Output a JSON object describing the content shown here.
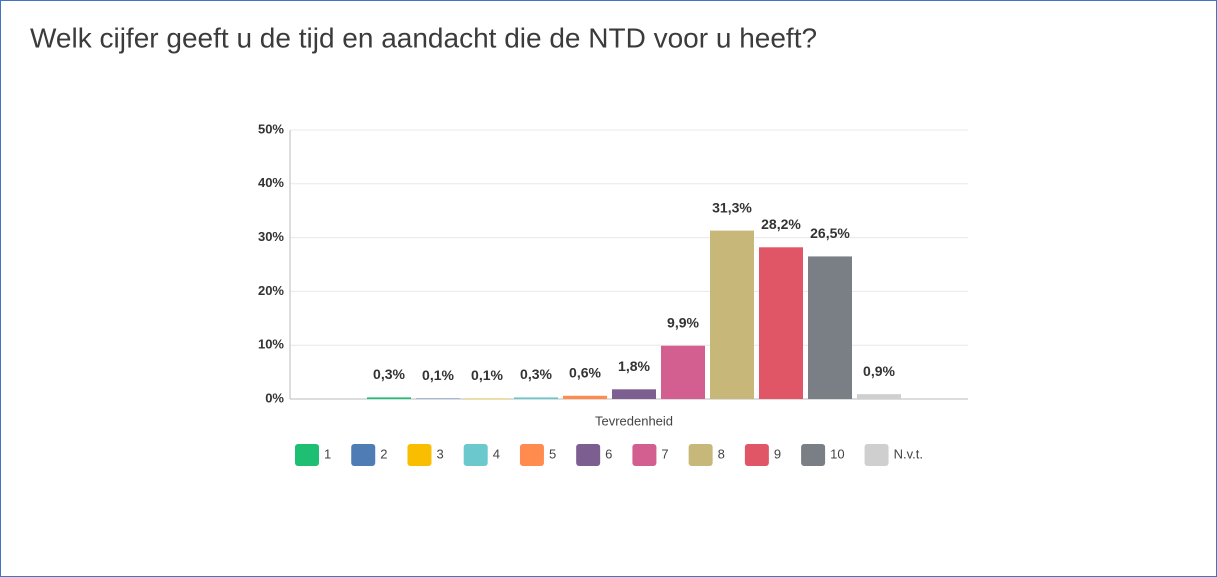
{
  "chart_data": {
    "type": "bar",
    "title": "Welk cijfer geeft u de tijd en aandacht die de NTD voor u heeft?",
    "categories": [
      "Tevredenheid"
    ],
    "series": [
      {
        "name": "1",
        "color": "#1fbf73",
        "values": [
          0.3
        ],
        "value_labels": [
          "0,3%"
        ]
      },
      {
        "name": "2",
        "color": "#507cb6",
        "values": [
          0.1
        ],
        "value_labels": [
          "0,1%"
        ]
      },
      {
        "name": "3",
        "color": "#f9be00",
        "values": [
          0.1
        ],
        "value_labels": [
          "0,1%"
        ]
      },
      {
        "name": "4",
        "color": "#6bc8cd",
        "values": [
          0.3
        ],
        "value_labels": [
          "0,3%"
        ]
      },
      {
        "name": "5",
        "color": "#ff8b4f",
        "values": [
          0.6
        ],
        "value_labels": [
          "0,6%"
        ]
      },
      {
        "name": "6",
        "color": "#7d5e90",
        "values": [
          1.8
        ],
        "value_labels": [
          "1,8%"
        ]
      },
      {
        "name": "7",
        "color": "#d25f90",
        "values": [
          9.9
        ],
        "value_labels": [
          "9,9%"
        ]
      },
      {
        "name": "8",
        "color": "#c7b879",
        "values": [
          31.3
        ],
        "value_labels": [
          "31,3%"
        ]
      },
      {
        "name": "9",
        "color": "#e05666",
        "values": [
          28.2
        ],
        "value_labels": [
          "28,2%"
        ]
      },
      {
        "name": "10",
        "color": "#7a7e85",
        "values": [
          26.5
        ],
        "value_labels": [
          "26,5%"
        ]
      },
      {
        "name": "N.v.t.",
        "color": "#cfcfcf",
        "values": [
          0.9
        ],
        "value_labels": [
          "0,9%"
        ]
      }
    ],
    "ylim": [
      0,
      50
    ],
    "yticks": [
      {
        "value": 0,
        "label": "0%"
      },
      {
        "value": 10,
        "label": "10%"
      },
      {
        "value": 20,
        "label": "20%"
      },
      {
        "value": 30,
        "label": "30%"
      },
      {
        "value": 40,
        "label": "40%"
      },
      {
        "value": 50,
        "label": "50%"
      }
    ],
    "grid": true
  }
}
